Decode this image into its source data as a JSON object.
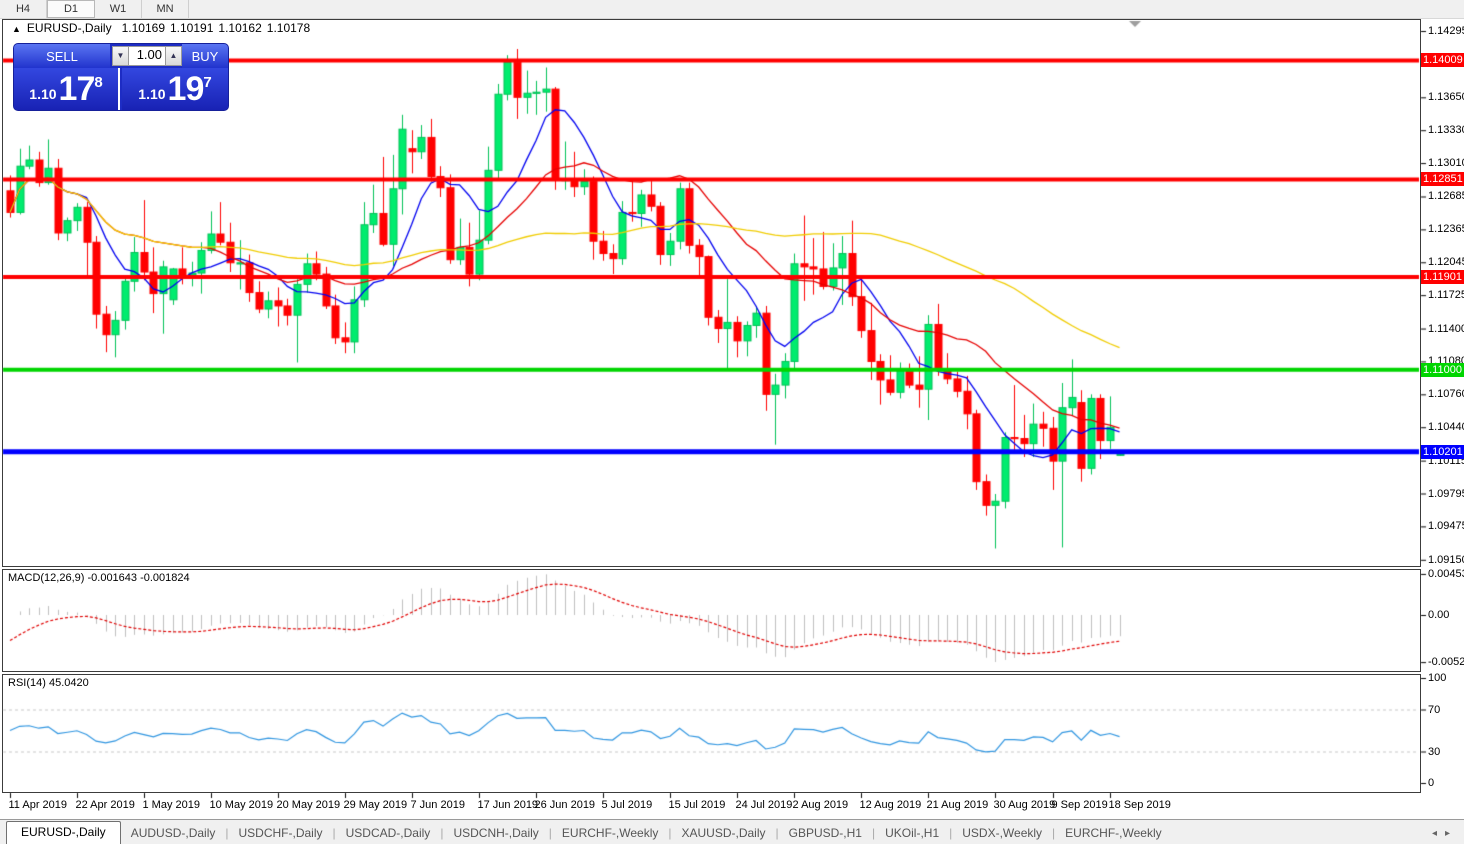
{
  "toolbar": {
    "timeframes": [
      {
        "label": "H4",
        "active": false
      },
      {
        "label": "D1",
        "active": true
      },
      {
        "label": "W1",
        "active": false
      },
      {
        "label": "MN",
        "active": false
      }
    ]
  },
  "info": {
    "collapse_icon": "▲",
    "title": "EURUSD-,Daily",
    "open": "1.10169",
    "high": "1.10191",
    "low": "1.10162",
    "close": "1.10178"
  },
  "one_click": {
    "sell_label": "SELL",
    "buy_label": "BUY",
    "lot_value": "1.00",
    "spin_down": "▼",
    "spin_up": "▲",
    "sell_price": {
      "base": "1.10",
      "big": "17",
      "sup": "8"
    },
    "buy_price": {
      "base": "1.10",
      "big": "19",
      "sup": "7"
    }
  },
  "indicators": {
    "macd_name": "MACD(12,26,9)",
    "macd_value": "-0.001643 -0.001824",
    "rsi_name": "RSI(14)",
    "rsi_value": "45.0420"
  },
  "tabs": {
    "items": [
      {
        "label": "EURUSD-,Daily",
        "active": true
      },
      {
        "label": "AUDUSD-,Daily",
        "active": false
      },
      {
        "label": "USDCHF-,Daily",
        "active": false
      },
      {
        "label": "USDCAD-,Daily",
        "active": false
      },
      {
        "label": "USDCNH-,Daily",
        "active": false
      },
      {
        "label": "EURCHF-,Weekly",
        "active": false
      },
      {
        "label": "XAUUSD-,Daily",
        "active": false
      },
      {
        "label": "GBPUSD-,H1",
        "active": false
      },
      {
        "label": "UKOil-,H1",
        "active": false
      },
      {
        "label": "USDX-,Weekly",
        "active": false
      },
      {
        "label": "EURCHF-,Weekly",
        "active": false
      }
    ],
    "scroll_left": "◂",
    "scroll_right": "▸"
  },
  "chart_data": {
    "type": "candlestick",
    "symbol": "EURUSD-",
    "timeframe": "Daily",
    "background": "#ffffff",
    "up_color": "#00ec6e",
    "down_color": "#ff0000",
    "price_axis_ticks": [
      "1.14295",
      "1.13975",
      "1.13650",
      "1.13330",
      "1.13010",
      "1.12685",
      "1.12365",
      "1.12045",
      "1.11725",
      "1.11400",
      "1.11080",
      "1.10760",
      "1.10440",
      "1.10115",
      "1.09795",
      "1.09475",
      "1.09150"
    ],
    "x_labels": [
      {
        "text": "11 Apr 2019",
        "i": 0
      },
      {
        "text": "22 Apr 2019",
        "i": 7
      },
      {
        "text": "1 May 2019",
        "i": 14
      },
      {
        "text": "10 May 2019",
        "i": 21
      },
      {
        "text": "20 May 2019",
        "i": 28
      },
      {
        "text": "29 May 2019",
        "i": 35
      },
      {
        "text": "7 Jun 2019",
        "i": 42
      },
      {
        "text": "17 Jun 2019",
        "i": 49
      },
      {
        "text": "26 Jun 2019",
        "i": 55
      },
      {
        "text": "5 Jul 2019",
        "i": 62
      },
      {
        "text": "15 Jul 2019",
        "i": 69
      },
      {
        "text": "24 Jul 2019",
        "i": 76
      },
      {
        "text": "2 Aug 2019",
        "i": 82
      },
      {
        "text": "12 Aug 2019",
        "i": 89
      },
      {
        "text": "21 Aug 2019",
        "i": 96
      },
      {
        "text": "30 Aug 2019",
        "i": 103
      },
      {
        "text": "9 Sep 2019",
        "i": 109
      },
      {
        "text": "18 Sep 2019",
        "i": 115
      }
    ],
    "horizontal_lines": [
      {
        "price": 1.14009,
        "label": "1.14009",
        "color": "#ff0000",
        "thickness": 4
      },
      {
        "price": 1.12851,
        "label": "1.12851",
        "color": "#ff0000",
        "thickness": 4
      },
      {
        "price": 1.11901,
        "label": "1.11901",
        "color": "#ff0000",
        "thickness": 4
      },
      {
        "price": 1.11,
        "label": "1.11000",
        "color": "#00d500",
        "thickness": 4
      },
      {
        "price": 1.10201,
        "label": "1.10201",
        "color": "#0000ff",
        "thickness": 5
      }
    ],
    "moving_averages": [
      {
        "period": 8,
        "color": "#0000f0"
      },
      {
        "period": 21,
        "color": "#e60000"
      },
      {
        "period": 55,
        "color": "#f0cc00"
      }
    ],
    "macd": {
      "params": [
        12,
        26,
        9
      ],
      "value_main": -0.001643,
      "value_signal": -0.001824,
      "scale_max": "0.004536",
      "scale_zero": "0.00",
      "scale_min": "-0.005205",
      "histogram_color": "#bfbfbf",
      "signal_color": "#e00000"
    },
    "rsi": {
      "period": 14,
      "value": 45.042,
      "levels": [
        70,
        30
      ],
      "scale_ticks": [
        "100",
        "70",
        "30",
        "0"
      ],
      "line_color": "#2f95e0"
    },
    "candles": [
      [
        1.1274,
        1.1289,
        1.1248,
        1.1253
      ],
      [
        1.1253,
        1.1315,
        1.1251,
        1.1298
      ],
      [
        1.1298,
        1.1318,
        1.1295,
        1.1304
      ],
      [
        1.1304,
        1.1312,
        1.1278,
        1.1282
      ],
      [
        1.1282,
        1.1324,
        1.128,
        1.1296
      ],
      [
        1.1296,
        1.1305,
        1.1226,
        1.1233
      ],
      [
        1.1233,
        1.1248,
        1.1225,
        1.1245
      ],
      [
        1.1245,
        1.1262,
        1.1235,
        1.1258
      ],
      [
        1.1258,
        1.1263,
        1.1192,
        1.1224
      ],
      [
        1.1224,
        1.123,
        1.114,
        1.1154
      ],
      [
        1.1154,
        1.1162,
        1.1117,
        1.1134
      ],
      [
        1.1134,
        1.1157,
        1.1112,
        1.1148
      ],
      [
        1.1148,
        1.119,
        1.1139,
        1.1186
      ],
      [
        1.1186,
        1.1229,
        1.1176,
        1.1214
      ],
      [
        1.1214,
        1.1265,
        1.1187,
        1.1195
      ],
      [
        1.1195,
        1.1219,
        1.1155,
        1.1174
      ],
      [
        1.1174,
        1.1206,
        1.1135,
        1.12
      ],
      [
        1.1168,
        1.1199,
        1.1163,
        1.1198
      ],
      [
        1.1198,
        1.1219,
        1.1183,
        1.1192
      ],
      [
        1.1192,
        1.1205,
        1.1181,
        1.1194
      ],
      [
        1.1194,
        1.1224,
        1.1174,
        1.1216
      ],
      [
        1.1216,
        1.1254,
        1.1213,
        1.1232
      ],
      [
        1.1232,
        1.1263,
        1.1221,
        1.1224
      ],
      [
        1.1224,
        1.1243,
        1.1195,
        1.1204
      ],
      [
        1.1204,
        1.1226,
        1.1178,
        1.1204
      ],
      [
        1.1204,
        1.1212,
        1.1166,
        1.1175
      ],
      [
        1.1175,
        1.1186,
        1.1155,
        1.1159
      ],
      [
        1.1159,
        1.1176,
        1.115,
        1.1167
      ],
      [
        1.1167,
        1.118,
        1.1142,
        1.1162
      ],
      [
        1.1162,
        1.1169,
        1.1143,
        1.1153
      ],
      [
        1.1153,
        1.1188,
        1.1107,
        1.1183
      ],
      [
        1.1183,
        1.1213,
        1.1175,
        1.1203
      ],
      [
        1.1203,
        1.1215,
        1.1187,
        1.1193
      ],
      [
        1.1193,
        1.12,
        1.1159,
        1.1162
      ],
      [
        1.1162,
        1.1173,
        1.1125,
        1.1131
      ],
      [
        1.1131,
        1.1146,
        1.1116,
        1.1127
      ],
      [
        1.1127,
        1.1181,
        1.1116,
        1.1168
      ],
      [
        1.1168,
        1.1263,
        1.1161,
        1.1241
      ],
      [
        1.1241,
        1.128,
        1.1233,
        1.1252
      ],
      [
        1.1252,
        1.1307,
        1.122,
        1.1222
      ],
      [
        1.1222,
        1.1309,
        1.1201,
        1.1276
      ],
      [
        1.1276,
        1.1348,
        1.1251,
        1.1334
      ],
      [
        1.1315,
        1.1333,
        1.1291,
        1.1312
      ],
      [
        1.1312,
        1.1338,
        1.1305,
        1.1326
      ],
      [
        1.1326,
        1.1344,
        1.1283,
        1.1288
      ],
      [
        1.1288,
        1.1298,
        1.1268,
        1.1277
      ],
      [
        1.1277,
        1.129,
        1.1203,
        1.1207
      ],
      [
        1.1207,
        1.1247,
        1.1202,
        1.1219
      ],
      [
        1.1219,
        1.1243,
        1.1181,
        1.1193
      ],
      [
        1.1193,
        1.1255,
        1.1187,
        1.1226
      ],
      [
        1.1226,
        1.1317,
        1.1222,
        1.1294
      ],
      [
        1.1294,
        1.1378,
        1.1285,
        1.1368
      ],
      [
        1.1368,
        1.1406,
        1.1362,
        1.1399
      ],
      [
        1.1399,
        1.1412,
        1.1344,
        1.1365
      ],
      [
        1.1365,
        1.1391,
        1.1349,
        1.1369
      ],
      [
        1.1369,
        1.1381,
        1.1348,
        1.137
      ],
      [
        1.137,
        1.1394,
        1.1351,
        1.1373
      ],
      [
        1.1373,
        1.1375,
        1.1275,
        1.1285
      ],
      [
        1.1285,
        1.1322,
        1.1275,
        1.1285
      ],
      [
        1.1285,
        1.1312,
        1.1268,
        1.1278
      ],
      [
        1.1278,
        1.1295,
        1.127,
        1.1283
      ],
      [
        1.1283,
        1.1288,
        1.1207,
        1.1225
      ],
      [
        1.1225,
        1.1235,
        1.1206,
        1.1213
      ],
      [
        1.1213,
        1.1222,
        1.1193,
        1.1208
      ],
      [
        1.1208,
        1.1264,
        1.1202,
        1.1253
      ],
      [
        1.1253,
        1.1286,
        1.1244,
        1.1252
      ],
      [
        1.1252,
        1.1275,
        1.1239,
        1.127
      ],
      [
        1.127,
        1.1284,
        1.1254,
        1.1259
      ],
      [
        1.1259,
        1.1263,
        1.1202,
        1.1212
      ],
      [
        1.1212,
        1.1233,
        1.1201,
        1.1225
      ],
      [
        1.1225,
        1.1282,
        1.1217,
        1.1276
      ],
      [
        1.1276,
        1.1282,
        1.1213,
        1.1221
      ],
      [
        1.1221,
        1.1227,
        1.1192,
        1.121
      ],
      [
        1.121,
        1.1211,
        1.1143,
        1.1151
      ],
      [
        1.1151,
        1.1158,
        1.1126,
        1.114
      ],
      [
        1.114,
        1.1188,
        1.1101,
        1.1146
      ],
      [
        1.1146,
        1.1152,
        1.1112,
        1.1128
      ],
      [
        1.1128,
        1.1147,
        1.1113,
        1.1143
      ],
      [
        1.1143,
        1.1162,
        1.1131,
        1.1155
      ],
      [
        1.1155,
        1.1162,
        1.106,
        1.1076
      ],
      [
        1.1076,
        1.1096,
        1.1027,
        1.1085
      ],
      [
        1.1085,
        1.1116,
        1.1072,
        1.1108
      ],
      [
        1.1108,
        1.1213,
        1.1101,
        1.1203
      ],
      [
        1.1203,
        1.125,
        1.1167,
        1.12
      ],
      [
        1.12,
        1.1228,
        1.1173,
        1.1198
      ],
      [
        1.1198,
        1.1234,
        1.1178,
        1.1181
      ],
      [
        1.1181,
        1.1223,
        1.1177,
        1.1199
      ],
      [
        1.1199,
        1.123,
        1.1163,
        1.1213
      ],
      [
        1.1213,
        1.1245,
        1.1162,
        1.1171
      ],
      [
        1.1171,
        1.1192,
        1.1131,
        1.1138
      ],
      [
        1.1138,
        1.1165,
        1.109,
        1.1108
      ],
      [
        1.1108,
        1.1115,
        1.1066,
        1.109
      ],
      [
        1.109,
        1.1114,
        1.1075,
        1.1078
      ],
      [
        1.1078,
        1.1107,
        1.1072,
        1.1099
      ],
      [
        1.1099,
        1.1106,
        1.1082,
        1.1085
      ],
      [
        1.1085,
        1.1113,
        1.1063,
        1.1081
      ],
      [
        1.1081,
        1.1153,
        1.1051,
        1.1144
      ],
      [
        1.1144,
        1.1164,
        1.1094,
        1.1101
      ],
      [
        1.1101,
        1.1116,
        1.1086,
        1.1091
      ],
      [
        1.1091,
        1.1098,
        1.1073,
        1.1079
      ],
      [
        1.1079,
        1.1094,
        1.1042,
        1.1057
      ],
      [
        1.1057,
        1.1061,
        1.0983,
        1.0991
      ],
      [
        1.0991,
        1.0998,
        1.0958,
        1.0968
      ],
      [
        1.0968,
        1.0979,
        1.0926,
        1.0972
      ],
      [
        1.0972,
        1.1039,
        1.0965,
        1.1034
      ],
      [
        1.1034,
        1.1085,
        1.1022,
        1.1033
      ],
      [
        1.1033,
        1.1056,
        1.1015,
        1.1028
      ],
      [
        1.1028,
        1.1067,
        1.1015,
        1.1047
      ],
      [
        1.1047,
        1.1059,
        1.1025,
        1.1043
      ],
      [
        1.1043,
        1.1054,
        1.0983,
        1.1011
      ],
      [
        1.1011,
        1.1087,
        1.0927,
        1.1063
      ],
      [
        1.1063,
        1.111,
        1.1055,
        1.1073
      ],
      [
        1.1068,
        1.108,
        1.0991,
        1.1004
      ],
      [
        1.1004,
        1.1076,
        1.0998,
        1.1072
      ],
      [
        1.1072,
        1.1076,
        1.1013,
        1.1031
      ],
      [
        1.1031,
        1.1074,
        1.1023,
        1.1044
      ],
      [
        1.10169,
        1.10191,
        1.10162,
        1.10178
      ]
    ]
  }
}
